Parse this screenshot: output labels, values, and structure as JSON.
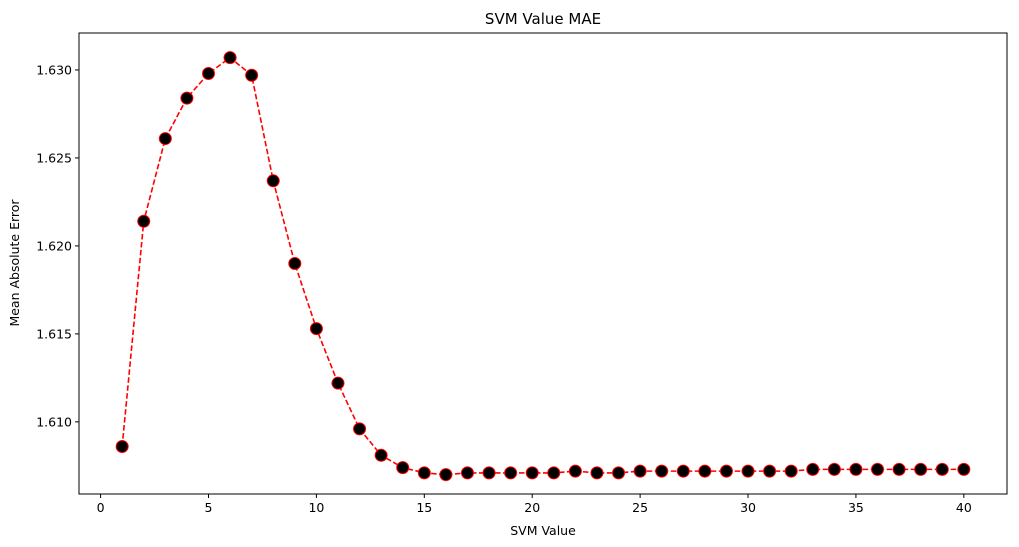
{
  "chart_data": {
    "type": "line",
    "title": "SVM Value MAE",
    "xlabel": "SVM Value",
    "ylabel": "Mean Absolute Error",
    "xlim": [
      -1,
      42
    ],
    "ylim": [
      1.6059,
      1.6321
    ],
    "xticks": [
      0,
      5,
      10,
      15,
      20,
      25,
      30,
      35,
      40
    ],
    "yticks": [
      1.61,
      1.615,
      1.62,
      1.625,
      1.63
    ],
    "ytick_labels": [
      "1.610",
      "1.615",
      "1.620",
      "1.625",
      "1.630"
    ],
    "grid": false,
    "line_color": "#ff0000",
    "line_style": "dashed",
    "marker_face_color": "#000000",
    "marker_edge_color": "#ff0000",
    "series": [
      {
        "x": [
          1,
          2,
          3,
          4,
          5,
          6,
          7,
          8,
          9,
          10,
          11,
          12,
          13,
          14,
          15,
          16,
          17,
          18,
          19,
          20,
          21,
          22,
          23,
          24,
          25,
          26,
          27,
          28,
          29,
          30,
          31,
          32,
          33,
          34,
          35,
          36,
          37,
          38,
          39,
          40
        ],
        "values": [
          1.6086,
          1.6214,
          1.6261,
          1.6284,
          1.6298,
          1.6307,
          1.6297,
          1.6237,
          1.619,
          1.6153,
          1.6122,
          1.6096,
          1.6081,
          1.6074,
          1.6071,
          1.607,
          1.6071,
          1.6071,
          1.6071,
          1.6071,
          1.6071,
          1.6072,
          1.6071,
          1.6071,
          1.6072,
          1.6072,
          1.6072,
          1.6072,
          1.6072,
          1.6072,
          1.6072,
          1.6072,
          1.6073,
          1.6073,
          1.6073,
          1.6073,
          1.6073,
          1.6073,
          1.6073,
          1.6073
        ]
      }
    ]
  }
}
